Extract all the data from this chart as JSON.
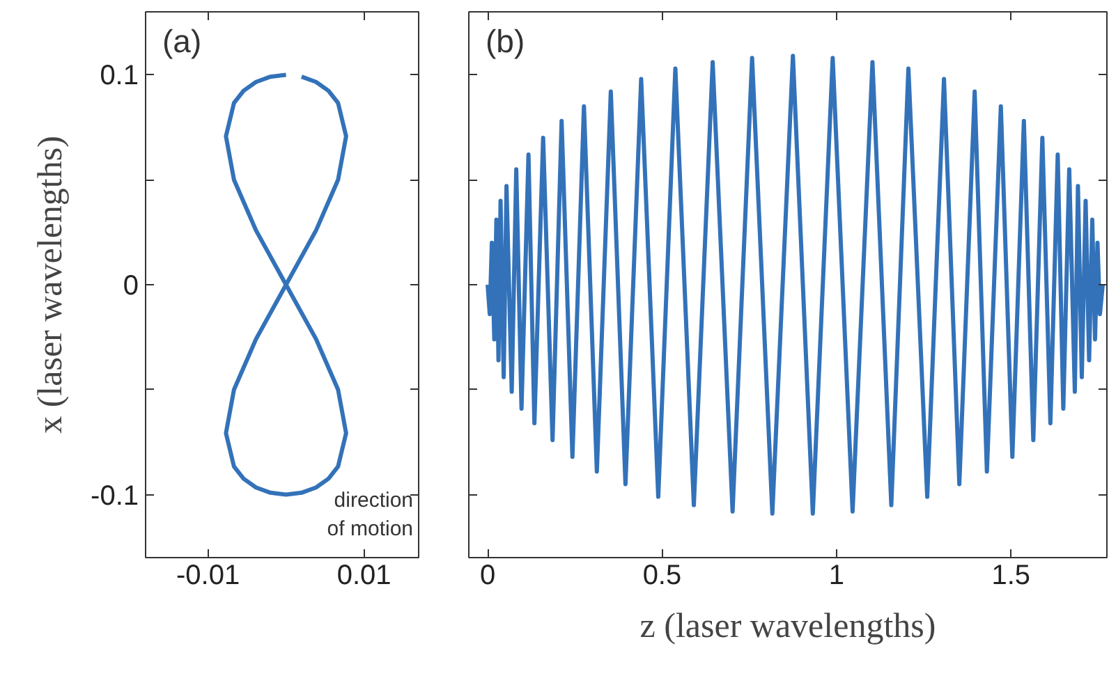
{
  "chart_data": [
    {
      "type": "line",
      "title": "(a)",
      "ylabel": "x (laser wavelengths)",
      "xlim": [
        -0.018,
        0.017
      ],
      "ylim": [
        -0.13,
        0.13
      ],
      "xticks": [
        -0.01,
        0.01
      ],
      "yticks": [
        {
          "value": -0.1,
          "label": "-0.1"
        },
        {
          "value": -0.05,
          "label": null
        },
        0,
        {
          "value": 0.05,
          "label": null
        },
        0.1
      ],
      "grid": false,
      "line_style": "solid",
      "annotations": [
        "direction\nof motion"
      ],
      "series": [
        {
          "color": "#3372b9",
          "x": [
            0,
            -0.00199,
            -0.00385,
            -0.00544,
            -0.00667,
            -0.0077,
            -0.00667,
            -0.00385,
            0,
            0.00385,
            0.00667,
            0.0077,
            0.00667,
            0.00544,
            0.00385,
            0.00199,
            0,
            -0.00199,
            -0.00385,
            -0.00544,
            -0.00667,
            -0.0077,
            -0.00667,
            -0.00385,
            0,
            0.00385,
            0.00667,
            0.0077,
            0.00667,
            0.00544,
            0.00385,
            0.00199
          ],
          "values": [
            0.1,
            0.0991,
            0.0966,
            0.0924,
            0.0866,
            0.0707,
            0.05,
            0.0259,
            0,
            -0.0259,
            -0.05,
            -0.0707,
            -0.0866,
            -0.0924,
            -0.0966,
            -0.0991,
            -0.1,
            -0.0991,
            -0.0966,
            -0.0924,
            -0.0866,
            -0.0707,
            -0.05,
            -0.0259,
            0,
            0.0259,
            0.05,
            0.0707,
            0.0866,
            0.0924,
            0.0966,
            0.0991
          ]
        }
      ]
    },
    {
      "type": "line",
      "title": "(b)",
      "xlabel": "z (laser wavelengths)",
      "xlim": [
        -0.054,
        1.775
      ],
      "ylim": [
        -0.13,
        0.13
      ],
      "xticks": [
        0,
        0.5,
        1,
        1.5
      ],
      "yticks": [
        -0.1,
        -0.05,
        0,
        0.05,
        0.1
      ],
      "tick_labels": "x",
      "grid": false,
      "line_style": "solid",
      "series": [
        {
          "color": "#3372b9",
          "x": [
            0,
            0.006,
            0.012,
            0.019,
            0.025,
            0.031,
            0.037,
            0.046,
            0.054,
            0.069,
            0.082,
            0.097,
            0.117,
            0.134,
            0.159,
            0.186,
            0.212,
            0.243,
            0.276,
            0.313,
            0.353,
            0.395,
            0.44,
            0.489,
            0.538,
            0.591,
            0.645,
            0.702,
            0.758,
            0.816,
            0.875,
            0.932,
            0.989,
            1.046,
            1.103,
            1.157,
            1.206,
            1.26,
            1.308,
            1.352,
            1.396,
            1.431,
            1.471,
            1.504,
            1.537,
            1.564,
            1.59,
            1.613,
            1.634,
            1.65,
            1.667,
            1.683,
            1.692,
            1.703,
            1.714,
            1.724,
            1.733,
            1.741,
            1.748,
            1.755,
            1.763
          ],
          "values": [
            0,
            -0.014,
            0.02,
            -0.026,
            0.031,
            -0.036,
            0.04,
            -0.044,
            0.047,
            -0.051,
            0.055,
            -0.059,
            0.062,
            -0.066,
            0.07,
            -0.074,
            0.078,
            -0.082,
            0.085,
            -0.089,
            0.092,
            -0.095,
            0.098,
            -0.101,
            0.103,
            -0.105,
            0.106,
            -0.108,
            0.108,
            -0.109,
            0.109,
            -0.109,
            0.108,
            -0.108,
            0.106,
            -0.105,
            0.103,
            -0.101,
            0.098,
            -0.095,
            0.092,
            -0.089,
            0.085,
            -0.082,
            0.078,
            -0.074,
            0.07,
            -0.066,
            0.062,
            -0.059,
            0.055,
            -0.051,
            0.047,
            -0.044,
            0.04,
            -0.036,
            0.031,
            -0.026,
            0.02,
            -0.014,
            0
          ]
        }
      ]
    }
  ]
}
